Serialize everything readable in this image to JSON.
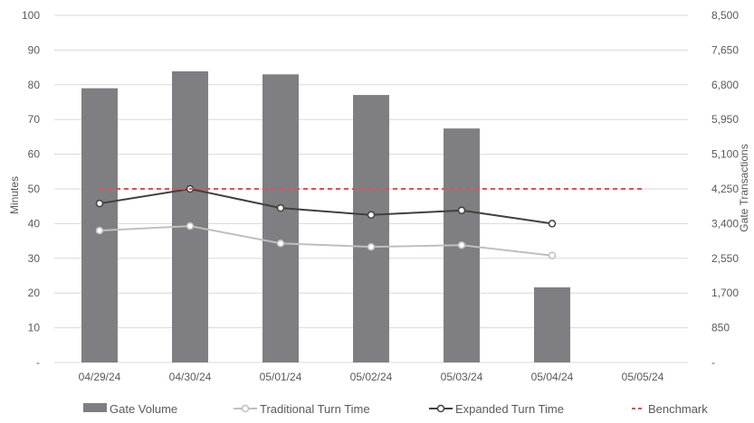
{
  "chart_data": {
    "type": "bar",
    "categories": [
      "04/29/24",
      "04/30/24",
      "05/01/24",
      "05/02/24",
      "05/03/24",
      "05/04/24",
      "05/05/24"
    ],
    "left_axis": {
      "label": "Minutes",
      "ylim": [
        0,
        100
      ],
      "ticks": [
        0,
        10,
        20,
        30,
        40,
        50,
        60,
        70,
        80,
        90,
        100
      ],
      "tick_labels": [
        "-",
        "10",
        "20",
        "30",
        "40",
        "50",
        "60",
        "70",
        "80",
        "90",
        "100"
      ]
    },
    "right_axis": {
      "label": "Gate Transactions",
      "ylim": [
        0,
        8500
      ],
      "ticks": [
        0,
        850,
        1700,
        2550,
        3400,
        4250,
        5100,
        5950,
        6800,
        7650,
        8500
      ],
      "tick_labels": [
        "-",
        "850",
        "1,700",
        "2,550",
        "3,400",
        "4,250",
        "5,100",
        "5,950",
        "6,800",
        "7,650",
        "8,500"
      ]
    },
    "series": [
      {
        "name": "Gate Volume",
        "type": "bar",
        "axis": "right",
        "color": "#7f7f83",
        "values": [
          6715,
          7130,
          7055,
          6550,
          5730,
          1840,
          null
        ]
      },
      {
        "name": "Traditional Turn Time",
        "type": "line",
        "axis": "left",
        "color": "#bfbfbf",
        "values": [
          38.0,
          39.3,
          34.3,
          33.3,
          33.8,
          30.8,
          null
        ]
      },
      {
        "name": "Expanded Turn Time",
        "type": "line",
        "axis": "left",
        "color": "#404040",
        "values": [
          45.8,
          50.0,
          44.5,
          42.5,
          43.8,
          40.0,
          null
        ]
      },
      {
        "name": "Benchmark",
        "type": "line",
        "style": "dashed",
        "axis": "left",
        "color": "#e0504f",
        "values": [
          50,
          50,
          50,
          50,
          50,
          50,
          50
        ]
      }
    ],
    "grid": true,
    "legend_position": "bottom"
  }
}
